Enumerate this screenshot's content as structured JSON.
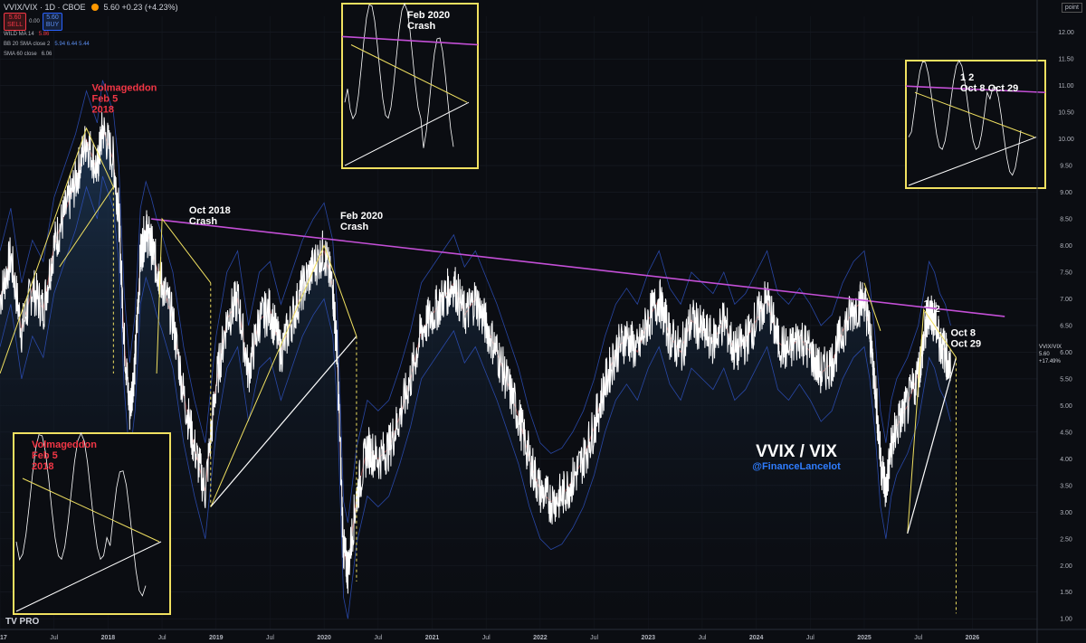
{
  "header": {
    "symbol": "VVIX/VIX · 1D · CBOE",
    "status_color": "#ff9800",
    "quote": "5.60 +0.23 (+4.23%)",
    "sell_price": "5.60",
    "sell_label": "SELL",
    "spread": "0.00",
    "buy_price": "5.60",
    "buy_label": "BUY"
  },
  "indicators": [
    {
      "label": "WILD MA 14",
      "value": "5.86",
      "color": "#f23645"
    },
    {
      "label": "BB 20 SMA close 2",
      "value": "5.94  6.44  5.44",
      "color": "#2962ff"
    },
    {
      "label": "SMA 60 close",
      "value": "6.06",
      "color": "#9c27b0"
    }
  ],
  "price_axis_unit": "point",
  "last_price_tag": {
    "value": "5.60",
    "change": "+17.49%",
    "label": "VVIX/VIX"
  },
  "logo": "TV PRO",
  "chart_data": {
    "type": "line",
    "title": "VVIX / VIX",
    "subtitle": "@FinanceLancelot",
    "x_ticks": [
      "2017",
      "Jul",
      "2018",
      "Jul",
      "2019",
      "Jul",
      "2020",
      "Jul",
      "2021",
      "Jul",
      "2022",
      "Jul",
      "2023",
      "Jul",
      "2024",
      "Jul",
      "2025",
      "Jul",
      "2026"
    ],
    "x_tick_years": [
      2017,
      2017.5,
      2018,
      2018.5,
      2019,
      2019.5,
      2020,
      2020.5,
      2021,
      2021.5,
      2022,
      2022.5,
      2023,
      2023.5,
      2024,
      2024.5,
      2025,
      2025.5,
      2026
    ],
    "y_ticks": [
      "1.00",
      "1.50",
      "2.00",
      "2.50",
      "3.00",
      "3.50",
      "4.00",
      "4.50",
      "5.00",
      "5.50",
      "6.00",
      "6.50",
      "7.00",
      "7.50",
      "8.00",
      "8.50",
      "9.00",
      "9.50",
      "10.00",
      "10.50",
      "11.00",
      "11.50",
      "12.00"
    ],
    "ylim": [
      0.8,
      12.3
    ],
    "xlim": [
      2017.0,
      2026.6
    ],
    "series": [
      {
        "color": "#ffffff",
        "x": [
          2017.0,
          2017.1,
          2017.2,
          2017.3,
          2017.4,
          2017.5,
          2017.6,
          2017.7,
          2017.8,
          2017.9,
          2017.95,
          2018.05,
          2018.1,
          2018.15,
          2018.2,
          2018.25,
          2018.3,
          2018.35,
          2018.4,
          2018.45,
          2018.5,
          2018.6,
          2018.7,
          2018.8,
          2018.9,
          2019.0,
          2019.1,
          2019.2,
          2019.3,
          2019.4,
          2019.5,
          2019.6,
          2019.7,
          2019.8,
          2019.9,
          2020.0,
          2020.08,
          2020.12,
          2020.18,
          2020.22,
          2020.3,
          2020.4,
          2020.5,
          2020.6,
          2020.7,
          2020.8,
          2020.9,
          2021.0,
          2021.1,
          2021.2,
          2021.3,
          2021.4,
          2021.5,
          2021.6,
          2021.7,
          2021.8,
          2021.9,
          2022.0,
          2022.1,
          2022.2,
          2022.3,
          2022.4,
          2022.5,
          2022.6,
          2022.7,
          2022.8,
          2022.9,
          2023.0,
          2023.1,
          2023.2,
          2023.3,
          2023.4,
          2023.5,
          2023.6,
          2023.7,
          2023.8,
          2023.9,
          2024.0,
          2024.1,
          2024.2,
          2024.3,
          2024.4,
          2024.5,
          2024.6,
          2024.7,
          2024.8,
          2024.9,
          2025.0,
          2025.05,
          2025.1,
          2025.15,
          2025.2,
          2025.25,
          2025.3,
          2025.4,
          2025.5,
          2025.55,
          2025.6,
          2025.65,
          2025.7,
          2025.75,
          2025.8
        ],
        "values": [
          7.0,
          7.8,
          6.4,
          7.2,
          6.8,
          8.0,
          8.6,
          9.2,
          10.0,
          9.4,
          10.2,
          9.6,
          8.6,
          6.2,
          4.9,
          5.8,
          7.8,
          8.3,
          8.0,
          7.6,
          7.3,
          6.6,
          5.2,
          4.2,
          3.4,
          5.4,
          6.6,
          7.0,
          5.6,
          6.6,
          6.8,
          6.0,
          6.6,
          7.2,
          7.6,
          7.9,
          7.2,
          6.0,
          2.3,
          1.9,
          3.3,
          4.2,
          4.0,
          4.2,
          4.8,
          5.5,
          6.4,
          6.7,
          7.0,
          7.3,
          6.7,
          7.0,
          6.5,
          6.0,
          5.4,
          4.8,
          4.0,
          3.4,
          3.2,
          3.3,
          3.6,
          4.0,
          4.6,
          5.4,
          6.0,
          6.3,
          6.0,
          6.6,
          7.0,
          6.3,
          6.0,
          6.6,
          6.4,
          6.2,
          6.6,
          6.0,
          6.2,
          6.6,
          7.0,
          6.2,
          6.0,
          6.3,
          6.0,
          5.6,
          5.8,
          6.4,
          6.8,
          7.0,
          6.4,
          5.4,
          4.0,
          3.4,
          4.2,
          4.6,
          5.0,
          5.6,
          6.2,
          6.8,
          6.6,
          6.2,
          6.0,
          5.6
        ]
      }
    ],
    "annotations": [
      {
        "text": "Volmageddon Feb 5 2018",
        "x": 2017.85,
        "y": 10.9,
        "color": "#f23645"
      },
      {
        "text": "Oct 2018 Crash",
        "x": 2018.75,
        "y": 8.6,
        "color": "#ffffff"
      },
      {
        "text": "Feb 2020 Crash",
        "x": 2020.15,
        "y": 8.5,
        "color": "#ffffff"
      },
      {
        "text": "1",
        "x": 2025.55,
        "y": 6.85,
        "color": "#ffffff"
      },
      {
        "text": "2",
        "x": 2025.65,
        "y": 6.75,
        "color": "#ffffff"
      },
      {
        "text": "Oct 8",
        "x": 2025.8,
        "y": 6.3,
        "color": "#ffffff"
      },
      {
        "text": "Oct 29",
        "x": 2025.8,
        "y": 6.1,
        "color": "#ffffff"
      }
    ],
    "resistance_line": {
      "from": [
        2018.4,
        8.5
      ],
      "to": [
        2026.3,
        6.67
      ],
      "color": "#c34fd6"
    },
    "insets": [
      {
        "title": "Feb 2020 Crash",
        "position": "top"
      },
      {
        "title": "Volmageddon Feb 5 2018",
        "position": "bottom-left",
        "title_color": "#f23645"
      },
      {
        "title": "1 2 Oct 8 Oct 29",
        "position": "top-right"
      }
    ]
  }
}
